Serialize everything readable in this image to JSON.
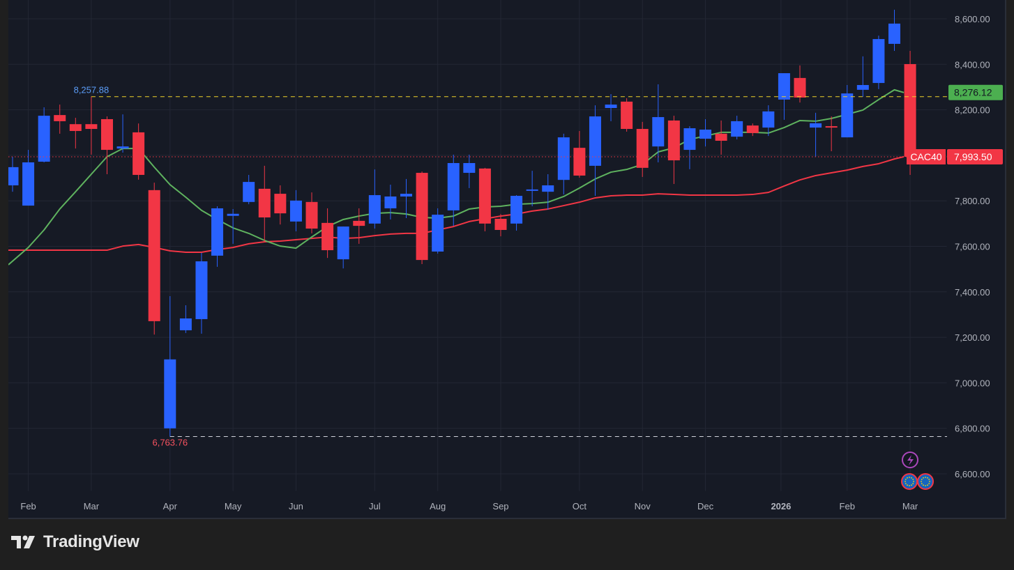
{
  "brand": {
    "name": "TradingView"
  },
  "chart_data": {
    "type": "candlestick",
    "symbol": "CAC40",
    "interval": "weekly",
    "colors": {
      "up": "#2962ff",
      "down": "#f23645",
      "ma_fast": "#5fb35f",
      "ma_slow": "#f23645",
      "hi_line": "#f0d22a"
    },
    "ylim": [
      6540,
      8680
    ],
    "y_ticks": [
      {
        "value": 8600,
        "label": "8,600.00"
      },
      {
        "value": 8400,
        "label": "8,400.00"
      },
      {
        "value": 8200,
        "label": "8,200.00"
      },
      {
        "value": 7800,
        "label": "7,800.00"
      },
      {
        "value": 7600,
        "label": "7,600.00"
      },
      {
        "value": 7400,
        "label": "7,400.00"
      },
      {
        "value": 7200,
        "label": "7,200.00"
      },
      {
        "value": 7000,
        "label": "7,000.00"
      },
      {
        "value": 6800,
        "label": "6,800.00"
      },
      {
        "value": 6600,
        "label": "6,600.00"
      }
    ],
    "x_ticks": [
      {
        "index": 1,
        "label": "Feb"
      },
      {
        "index": 5,
        "label": "Mar"
      },
      {
        "index": 10,
        "label": "Apr"
      },
      {
        "index": 14,
        "label": "May"
      },
      {
        "index": 18,
        "label": "Jun"
      },
      {
        "index": 23,
        "label": "Jul"
      },
      {
        "index": 27,
        "label": "Aug"
      },
      {
        "index": 31,
        "label": "Sep"
      },
      {
        "index": 36,
        "label": "Oct"
      },
      {
        "index": 40,
        "label": "Nov"
      },
      {
        "index": 44,
        "label": "Dec"
      },
      {
        "index": 48.8,
        "label": "2026",
        "bold": true
      },
      {
        "index": 53,
        "label": "Feb"
      },
      {
        "index": 57,
        "label": "Mar"
      }
    ],
    "candles": [
      [
        7868,
        7994,
        7840,
        7948
      ],
      [
        7779,
        8024,
        7779,
        7969
      ],
      [
        7972,
        8211,
        7969,
        8174
      ],
      [
        8177,
        8223,
        8095,
        8150
      ],
      [
        8137,
        8165,
        8030,
        8107
      ],
      [
        8137,
        8258,
        8003,
        8116
      ],
      [
        8159,
        8171,
        7917,
        8024
      ],
      [
        8030,
        8180,
        8012,
        8039
      ],
      [
        8101,
        8140,
        7893,
        7914
      ],
      [
        7847,
        7880,
        7212,
        7271
      ],
      [
        6800,
        7381,
        6764,
        7103
      ],
      [
        7231,
        7341,
        7219,
        7283
      ],
      [
        7280,
        7571,
        7216,
        7534
      ],
      [
        7559,
        7776,
        7510,
        7767
      ],
      [
        7734,
        7764,
        7611,
        7743
      ],
      [
        7795,
        7914,
        7785,
        7883
      ],
      [
        7853,
        7954,
        7620,
        7727
      ],
      [
        7831,
        7868,
        7696,
        7745
      ],
      [
        7709,
        7847,
        7666,
        7801
      ],
      [
        7795,
        7837,
        7657,
        7678
      ],
      [
        7703,
        7767,
        7549,
        7583
      ],
      [
        7543,
        7687,
        7503,
        7687
      ],
      [
        7712,
        7767,
        7611,
        7690
      ],
      [
        7700,
        7938,
        7678,
        7825
      ],
      [
        7767,
        7871,
        7718,
        7819
      ],
      [
        7819,
        7896,
        7724,
        7831
      ],
      [
        7923,
        7929,
        7522,
        7540
      ],
      [
        7577,
        7767,
        7568,
        7739
      ],
      [
        7758,
        8003,
        7690,
        7966
      ],
      [
        7923,
        8003,
        7856,
        7966
      ],
      [
        7942,
        7945,
        7666,
        7700
      ],
      [
        7721,
        7742,
        7644,
        7672
      ],
      [
        7700,
        7825,
        7669,
        7822
      ],
      [
        7844,
        7932,
        7776,
        7850
      ],
      [
        7840,
        7917,
        7761,
        7868
      ],
      [
        7892,
        8095,
        7828,
        8079
      ],
      [
        8033,
        8107,
        7902,
        7911
      ],
      [
        7954,
        8220,
        7822,
        8171
      ],
      [
        8208,
        8269,
        8150,
        8223
      ],
      [
        8236,
        8251,
        8104,
        8116
      ],
      [
        8116,
        8147,
        7905,
        7945
      ],
      [
        8039,
        8312,
        7969,
        8168
      ],
      [
        8153,
        8174,
        7874,
        7978
      ],
      [
        8024,
        8128,
        7939,
        8119
      ],
      [
        8073,
        8159,
        8039,
        8113
      ],
      [
        8095,
        8153,
        8003,
        8064
      ],
      [
        8082,
        8174,
        8070,
        8150
      ],
      [
        8131,
        8140,
        8085,
        8098
      ],
      [
        8122,
        8220,
        8085,
        8193
      ],
      [
        8245,
        8361,
        8156,
        8361
      ],
      [
        8340,
        8395,
        8232,
        8254
      ],
      [
        8122,
        8187,
        7994,
        8141
      ],
      [
        8128,
        8171,
        8018,
        8122
      ],
      [
        8079,
        8309,
        8079,
        8272
      ],
      [
        8288,
        8435,
        8257,
        8309
      ],
      [
        8318,
        8526,
        8291,
        8511
      ],
      [
        8490,
        8640,
        8459,
        8579
      ],
      [
        8401,
        8459,
        7914,
        7993.5
      ]
    ],
    "ma_fast": [
      7519,
      7595,
      7672,
      7764,
      7840,
      7917,
      7994,
      8030,
      8030,
      7948,
      7871,
      7816,
      7758,
      7718,
      7681,
      7657,
      7626,
      7601,
      7592,
      7641,
      7687,
      7718,
      7733,
      7745,
      7748,
      7742,
      7727,
      7724,
      7733,
      7764,
      7773,
      7776,
      7785,
      7788,
      7794,
      7819,
      7856,
      7896,
      7926,
      7938,
      7960,
      8015,
      8033,
      8070,
      8085,
      8101,
      8101,
      8101,
      8098,
      8122,
      8153,
      8150,
      8162,
      8180,
      8199,
      8245,
      8288,
      8276
    ],
    "ma_slow": [
      7583,
      7583,
      7583,
      7583,
      7583,
      7583,
      7583,
      7601,
      7608,
      7595,
      7580,
      7574,
      7574,
      7586,
      7595,
      7611,
      7620,
      7623,
      7629,
      7635,
      7641,
      7635,
      7638,
      7647,
      7654,
      7657,
      7657,
      7672,
      7687,
      7709,
      7721,
      7733,
      7742,
      7755,
      7764,
      7779,
      7794,
      7813,
      7822,
      7825,
      7825,
      7831,
      7828,
      7825,
      7825,
      7825,
      7825,
      7828,
      7837,
      7865,
      7892,
      7911,
      7923,
      7935,
      7951,
      7963,
      7984,
      7994
    ],
    "annotations": {
      "high": {
        "value": 8257.88,
        "label": "8,257.88",
        "index": 5
      },
      "low": {
        "value": 6763.76,
        "label": "6,763.76",
        "index": 10
      },
      "ma_fast_last": {
        "value": 8276.12,
        "label": "8,276.12"
      },
      "last_price": {
        "value": 7993.5,
        "label": "7,993.50",
        "symbol_label": "CAC40"
      }
    }
  }
}
